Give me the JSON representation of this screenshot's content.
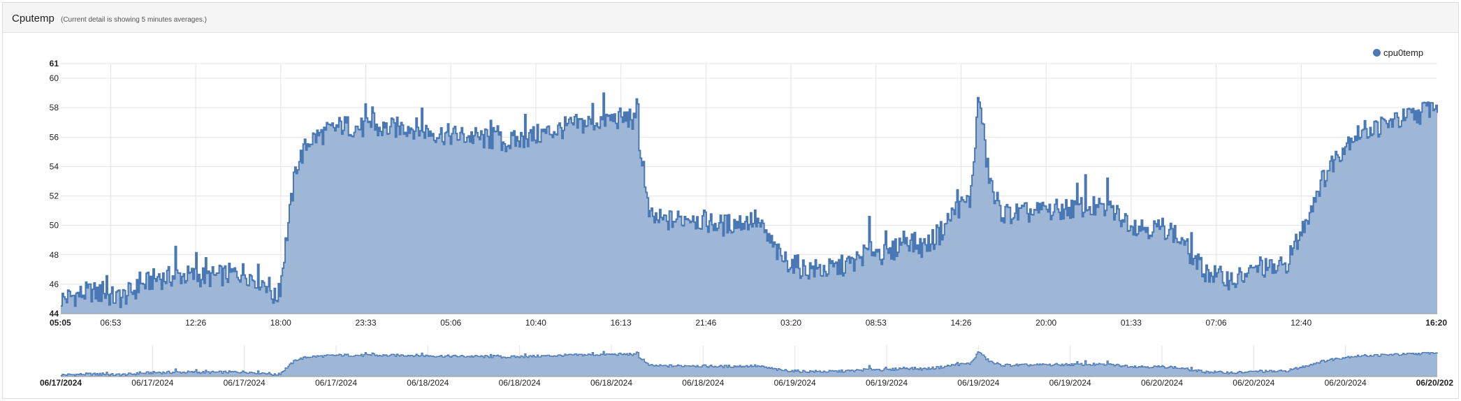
{
  "panel": {
    "title": "Cputemp",
    "subtitle": "(Current detail is showing 5 minutes averages.)"
  },
  "colors": {
    "fill": "#9fb7d7",
    "line": "#4a78b4",
    "grid": "#e4e4e4"
  },
  "chart_data": {
    "type": "area",
    "title": "Cputemp",
    "subtitle": "(Current detail is showing 5 minutes averages.)",
    "xlabel": "",
    "ylabel": "",
    "legend": {
      "position": "top-right",
      "entries": [
        "cpu0temp"
      ]
    },
    "grid": true,
    "ylim": [
      44,
      61
    ],
    "y_ticks": [
      44,
      46,
      48,
      50,
      52,
      54,
      56,
      58,
      60,
      61
    ],
    "x_ticks": [
      "05:05",
      "06:53",
      "12:26",
      "18:00",
      "23:33",
      "05:06",
      "10:40",
      "16:13",
      "21:46",
      "03:20",
      "08:53",
      "14:26",
      "20:00",
      "01:33",
      "07:06",
      "12:40",
      "16:20"
    ],
    "navigator_ticks": [
      "06/17/2024",
      "06/17/2024",
      "06/17/2024",
      "06/17/2024",
      "06/18/2024",
      "06/18/2024",
      "06/18/2024",
      "06/18/2024",
      "06/19/2024",
      "06/19/2024",
      "06/19/2024",
      "06/19/2024",
      "06/20/2024",
      "06/20/2024",
      "06/20/2024",
      "06/20/202"
    ],
    "series": [
      {
        "name": "cpu0temp",
        "x_hours": [
          0,
          1.8,
          3.5,
          5.5,
          7.2,
          9.0,
          11.0,
          12.5,
          12.9,
          13.2,
          13.6,
          14.2,
          15.0,
          17.0,
          19.0,
          21.0,
          23.0,
          25.0,
          27.0,
          29.0,
          31.0,
          33.0,
          34.4,
          34.9,
          35.2,
          35.6,
          36.5,
          38.0,
          40.0,
          42.0,
          43.5,
          45.0,
          46.5,
          48.0,
          49.0,
          50.0,
          51.0,
          52.0,
          53.0,
          54.0,
          55.0,
          55.5,
          56.0,
          56.5,
          57.0,
          58.0,
          60.0,
          62.0,
          63.5,
          65.0,
          66.0,
          67.0,
          68.0,
          69.0,
          70.0,
          71.0,
          72.0,
          72.5,
          73.0,
          74.0,
          75.0,
          76.0,
          77.0,
          78.0,
          79.0,
          80.0,
          81.0,
          82.0,
          83.0,
          83.25
        ],
        "values": [
          45.0,
          45.5,
          45.0,
          46.3,
          46.6,
          46.5,
          46.8,
          46.0,
          45.0,
          45.5,
          49.0,
          54.0,
          55.8,
          56.8,
          56.5,
          56.7,
          56.2,
          56.0,
          55.6,
          56.2,
          56.8,
          57.2,
          57.3,
          56.5,
          53.0,
          50.5,
          50.3,
          50.5,
          50.0,
          50.4,
          47.8,
          47.0,
          47.0,
          47.5,
          48.5,
          47.8,
          49.2,
          48.5,
          49.2,
          51.0,
          51.8,
          59.0,
          54.0,
          51.5,
          50.8,
          50.8,
          51.0,
          51.3,
          51.0,
          50.0,
          49.8,
          49.8,
          48.5,
          47.0,
          46.5,
          46.3,
          46.8,
          47.3,
          47.0,
          47.2,
          49.5,
          52.5,
          54.5,
          56.0,
          56.5,
          56.8,
          57.2,
          57.5,
          58.2,
          58.0
        ]
      }
    ]
  }
}
